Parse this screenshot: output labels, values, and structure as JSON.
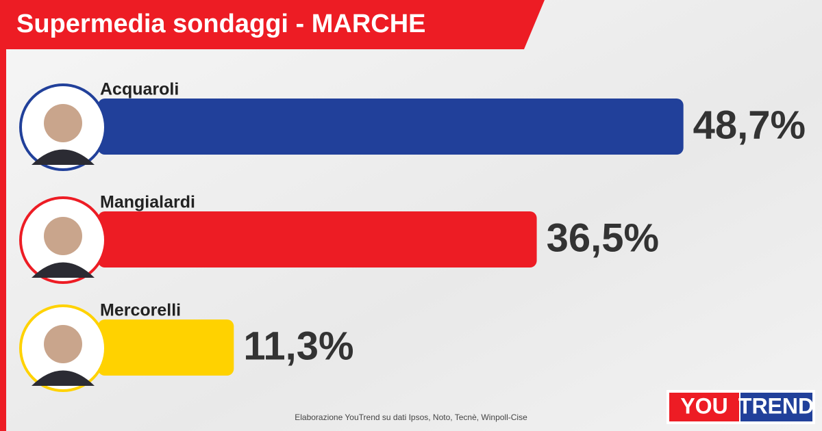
{
  "chart_data": {
    "type": "bar",
    "orientation": "horizontal",
    "title": "Supermedia sondaggi - MARCHE",
    "categories": [
      "Acquaroli",
      "Mangialardi",
      "Mercorelli"
    ],
    "values": [
      48.7,
      36.5,
      11.3
    ],
    "value_labels": [
      "48,7%",
      "36,5%",
      "11,3%"
    ],
    "colors": [
      "#21409a",
      "#ed1c24",
      "#ffd200"
    ],
    "source": "Elaborazione YouTrend su dati Ipsos, Noto, Tecnè, Winpoll-Cise"
  },
  "logo": {
    "left": "YOU",
    "right": "TREND"
  }
}
